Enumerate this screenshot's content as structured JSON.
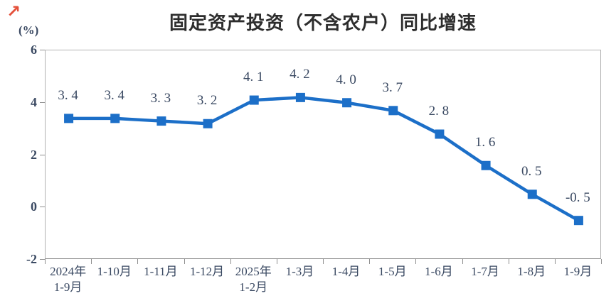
{
  "header": {
    "trend_icon": "↗",
    "trend_icon_color": "#E4503A"
  },
  "chart_data": {
    "type": "line",
    "title": "固定资产投资（不含农户）同比增速",
    "unit": "(%)",
    "categories": [
      [
        "2024年",
        "1-9月"
      ],
      [
        "1-10月"
      ],
      [
        "1-11月"
      ],
      [
        "1-12月"
      ],
      [
        "2025年",
        "1-2月"
      ],
      [
        "1-3月"
      ],
      [
        "1-4月"
      ],
      [
        "1-5月"
      ],
      [
        "1-6月"
      ],
      [
        "1-7月"
      ],
      [
        "1-8月"
      ],
      [
        "1-9月"
      ]
    ],
    "values": [
      3.4,
      3.4,
      3.3,
      3.2,
      4.1,
      4.2,
      4.0,
      3.7,
      2.8,
      1.6,
      0.5,
      -0.5
    ],
    "point_labels": [
      "3. 4",
      "3. 4",
      "3. 3",
      "3. 2",
      "4. 1",
      "4. 2",
      "4. 0",
      "3. 7",
      "2. 8",
      "1. 6",
      "0. 5",
      "-0. 5"
    ],
    "ylim": [
      -2,
      6
    ],
    "yticks": [
      6,
      4,
      2,
      0,
      -2
    ],
    "grid": false,
    "legend": false,
    "marker": "square",
    "line_color": "#1C6FC8",
    "text_color": "#3A4962",
    "axis_color": "#8F8F8F"
  }
}
